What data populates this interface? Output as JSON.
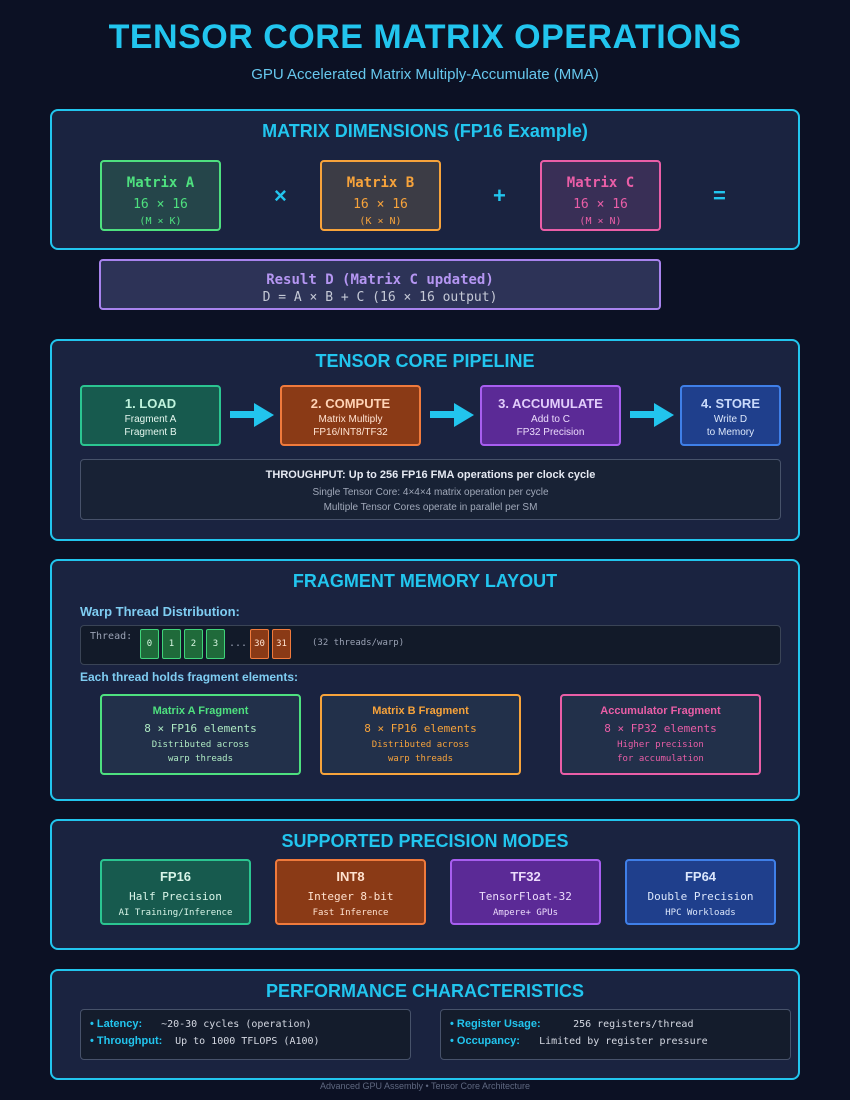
{
  "header": {
    "title": "TENSOR CORE MATRIX OPERATIONS",
    "subtitle": "GPU Accelerated Matrix Multiply-Accumulate (MMA)"
  },
  "dimensions": {
    "title": "MATRIX DIMENSIONS (FP16 Example)",
    "matrices": [
      {
        "name": "Matrix A",
        "size": "16 × 16",
        "dims": "(M × K)",
        "color": "#4ee07f"
      },
      {
        "name": "Matrix B",
        "size": "16 × 16",
        "dims": "(K × N)",
        "color": "#f7a33b"
      },
      {
        "name": "Matrix C",
        "size": "16 × 16",
        "dims": "(M × N)",
        "color": "#ea5ea7"
      }
    ],
    "operators": [
      "×",
      "+",
      "="
    ],
    "result": {
      "name": "Result D (Matrix C updated)",
      "formula": "D = A × B + C (16 × 16 output)",
      "color": "#a883ee"
    }
  },
  "pipeline": {
    "title": "TENSOR CORE PIPELINE",
    "stages": [
      {
        "name": "1. LOAD",
        "line1": "Fragment A",
        "line2": "Fragment B",
        "color": "#2bc591"
      },
      {
        "name": "2. COMPUTE",
        "line1": "Matrix Multiply",
        "line2": "FP16/INT8/TF32",
        "color": "#f07a3c"
      },
      {
        "name": "3. ACCUMULATE",
        "line1": "Add to C",
        "line2": "FP32 Precision",
        "color": "#a85ef0"
      },
      {
        "name": "4. STORE",
        "line1": "Write D",
        "line2": "to Memory",
        "color": "#3f7fe8"
      }
    ],
    "throughput": {
      "main": "THROUGHPUT: Up to 256 FP16 FMA operations per clock cycle",
      "line1": "Single Tensor Core: 4×4×4 matrix operation per cycle",
      "line2": "Multiple Tensor Cores operate in parallel per SM"
    }
  },
  "fragment": {
    "title": "FRAGMENT MEMORY LAYOUT",
    "warp_label": "Warp Thread Distribution:",
    "thread_label": "Thread:",
    "threads_first": [
      "0",
      "1",
      "2",
      "3"
    ],
    "ellipsis": "...",
    "threads_last": [
      "30",
      "31"
    ],
    "threads_note": "(32 threads/warp)",
    "holds_label": "Each thread holds fragment elements:",
    "fragments": [
      {
        "name": "Matrix A Fragment",
        "count": "8 × FP16 elements",
        "desc1": "Distributed across",
        "desc2": "warp threads",
        "color": "#4ee07f"
      },
      {
        "name": "Matrix B Fragment",
        "count": "8 × FP16 elements",
        "desc1": "Distributed across",
        "desc2": "warp threads",
        "color": "#f7a33b"
      },
      {
        "name": "Accumulator Fragment",
        "count": "8 × FP32 elements",
        "desc1": "Higher precision",
        "desc2": "for accumulation",
        "color": "#ea5ea7"
      }
    ]
  },
  "precision": {
    "title": "SUPPORTED PRECISION MODES",
    "modes": [
      {
        "name": "FP16",
        "desc": "Half Precision",
        "use": "AI Training/Inference",
        "color": "#2bc591"
      },
      {
        "name": "INT8",
        "desc": "Integer 8-bit",
        "use": "Fast Inference",
        "color": "#f07a3c"
      },
      {
        "name": "TF32",
        "desc": "TensorFloat-32",
        "use": "Ampere+ GPUs",
        "color": "#a85ef0"
      },
      {
        "name": "FP64",
        "desc": "Double Precision",
        "use": "HPC Workloads",
        "color": "#3f7fe8"
      }
    ]
  },
  "performance": {
    "title": "PERFORMANCE CHARACTERISTICS",
    "left": [
      {
        "key": "• Latency:",
        "value": "~20-30 cycles (operation)"
      },
      {
        "key": "• Throughput:",
        "value": "Up to 1000 TFLOPS (A100)"
      }
    ],
    "right": [
      {
        "key": "• Register Usage:",
        "value": "256 registers/thread"
      },
      {
        "key": "• Occupancy:",
        "value": "Limited by register pressure"
      }
    ]
  },
  "footer": "Advanced GPU Assembly • Tensor Core Architecture"
}
